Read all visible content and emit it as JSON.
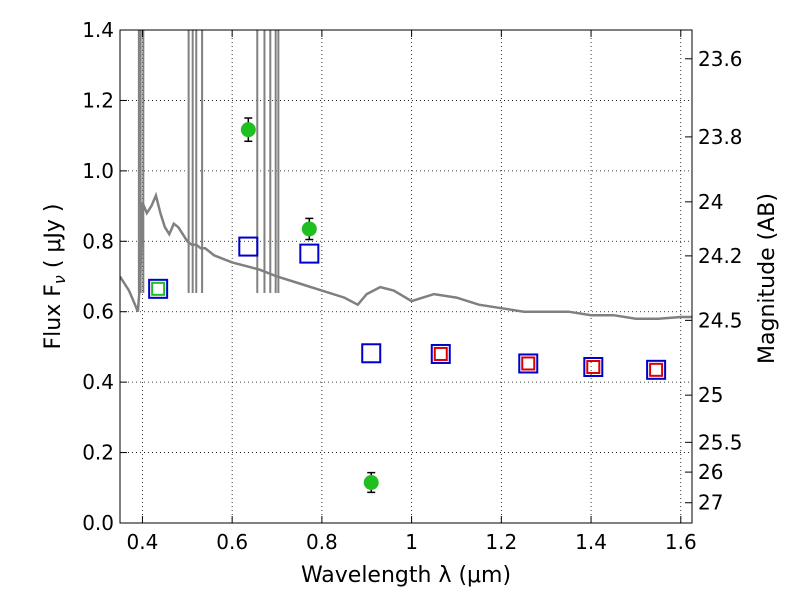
{
  "chart_data": {
    "type": "scatter",
    "xlabel": "Wavelength  λ (μm)",
    "ylabel": "Flux  F",
    "ylabel_sub": "ν",
    "ylabel_unit": " ( μJy )",
    "y2label": "Magnitude (AB)",
    "xlim": [
      0.35,
      1.625
    ],
    "ylim": [
      0.0,
      1.4
    ],
    "grid": true,
    "x_ticks": [
      0.4,
      0.6,
      0.8,
      1.0,
      1.2,
      1.4,
      1.6
    ],
    "x_tick_labels": [
      "0.4",
      "0.6",
      "0.8",
      "1",
      "1.2",
      "1.4",
      "1.6"
    ],
    "y_ticks": [
      0.0,
      0.2,
      0.4,
      0.6,
      0.8,
      1.0,
      1.2,
      1.4
    ],
    "y_tick_labels": [
      "0.0",
      "0.2",
      "0.4",
      "0.6",
      "0.8",
      "1.0",
      "1.2",
      "1.4"
    ],
    "y2_ticks": [
      23.6,
      23.8,
      24,
      24.2,
      24.5,
      25,
      25.5,
      26,
      27
    ],
    "y2_tick_labels": [
      "23.6",
      "23.8",
      "24",
      "24.2",
      "24.5",
      "25",
      "25.5",
      "26",
      "27"
    ],
    "series": [
      {
        "marker": "circle",
        "color": "#1fbf1f",
        "x": [
          0.636,
          0.772,
          0.91
        ],
        "y": [
          1.117,
          0.835,
          0.115
        ],
        "yerr": [
          0.033,
          0.03,
          0.028
        ]
      },
      {
        "marker": "open-square",
        "color": "#0000cc",
        "x": [
          0.435,
          0.636,
          0.772,
          0.91,
          1.065,
          1.26,
          1.405,
          1.545
        ],
        "y": [
          0.665,
          0.785,
          0.765,
          0.482,
          0.48,
          0.453,
          0.443,
          0.435
        ]
      },
      {
        "marker": "open-square",
        "color": "#dd0000",
        "x": [
          1.065,
          1.26,
          1.405,
          1.545
        ],
        "y": [
          0.48,
          0.453,
          0.443,
          0.435
        ]
      },
      {
        "marker": "open-square",
        "color": "#1fbf1f",
        "x": [
          0.435
        ],
        "y": [
          0.665
        ]
      },
      {
        "line": "model-spectrum",
        "color": "#808080",
        "x": [
          0.35,
          0.37,
          0.38,
          0.39,
          0.395,
          0.4,
          0.41,
          0.42,
          0.43,
          0.44,
          0.45,
          0.46,
          0.47,
          0.48,
          0.49,
          0.5,
          0.51,
          0.52,
          0.53,
          0.54,
          0.56,
          0.58,
          0.6,
          0.63,
          0.66,
          0.7,
          0.75,
          0.8,
          0.85,
          0.88,
          0.9,
          0.93,
          0.96,
          1.0,
          1.05,
          1.1,
          1.15,
          1.2,
          1.25,
          1.3,
          1.35,
          1.4,
          1.45,
          1.5,
          1.55,
          1.6,
          1.625
        ],
        "y": [
          0.7,
          0.66,
          0.63,
          0.6,
          0.69,
          0.91,
          0.88,
          0.9,
          0.93,
          0.88,
          0.84,
          0.82,
          0.85,
          0.84,
          0.82,
          0.8,
          0.79,
          0.79,
          0.78,
          0.78,
          0.76,
          0.75,
          0.74,
          0.73,
          0.72,
          0.7,
          0.68,
          0.66,
          0.64,
          0.62,
          0.65,
          0.67,
          0.66,
          0.63,
          0.65,
          0.64,
          0.62,
          0.61,
          0.6,
          0.6,
          0.6,
          0.59,
          0.59,
          0.58,
          0.58,
          0.585,
          0.585
        ]
      },
      {
        "line": "emission-spikes",
        "color": "#808080",
        "x": [
          0.392,
          0.396,
          0.402,
          0.503,
          0.512,
          0.52,
          0.533,
          0.656,
          0.672,
          0.685,
          0.697,
          0.703
        ],
        "y": [
          1.4,
          1.4,
          1.4,
          1.4,
          1.4,
          1.4,
          1.4,
          1.4,
          1.4,
          1.4,
          1.4,
          1.4
        ]
      }
    ]
  }
}
